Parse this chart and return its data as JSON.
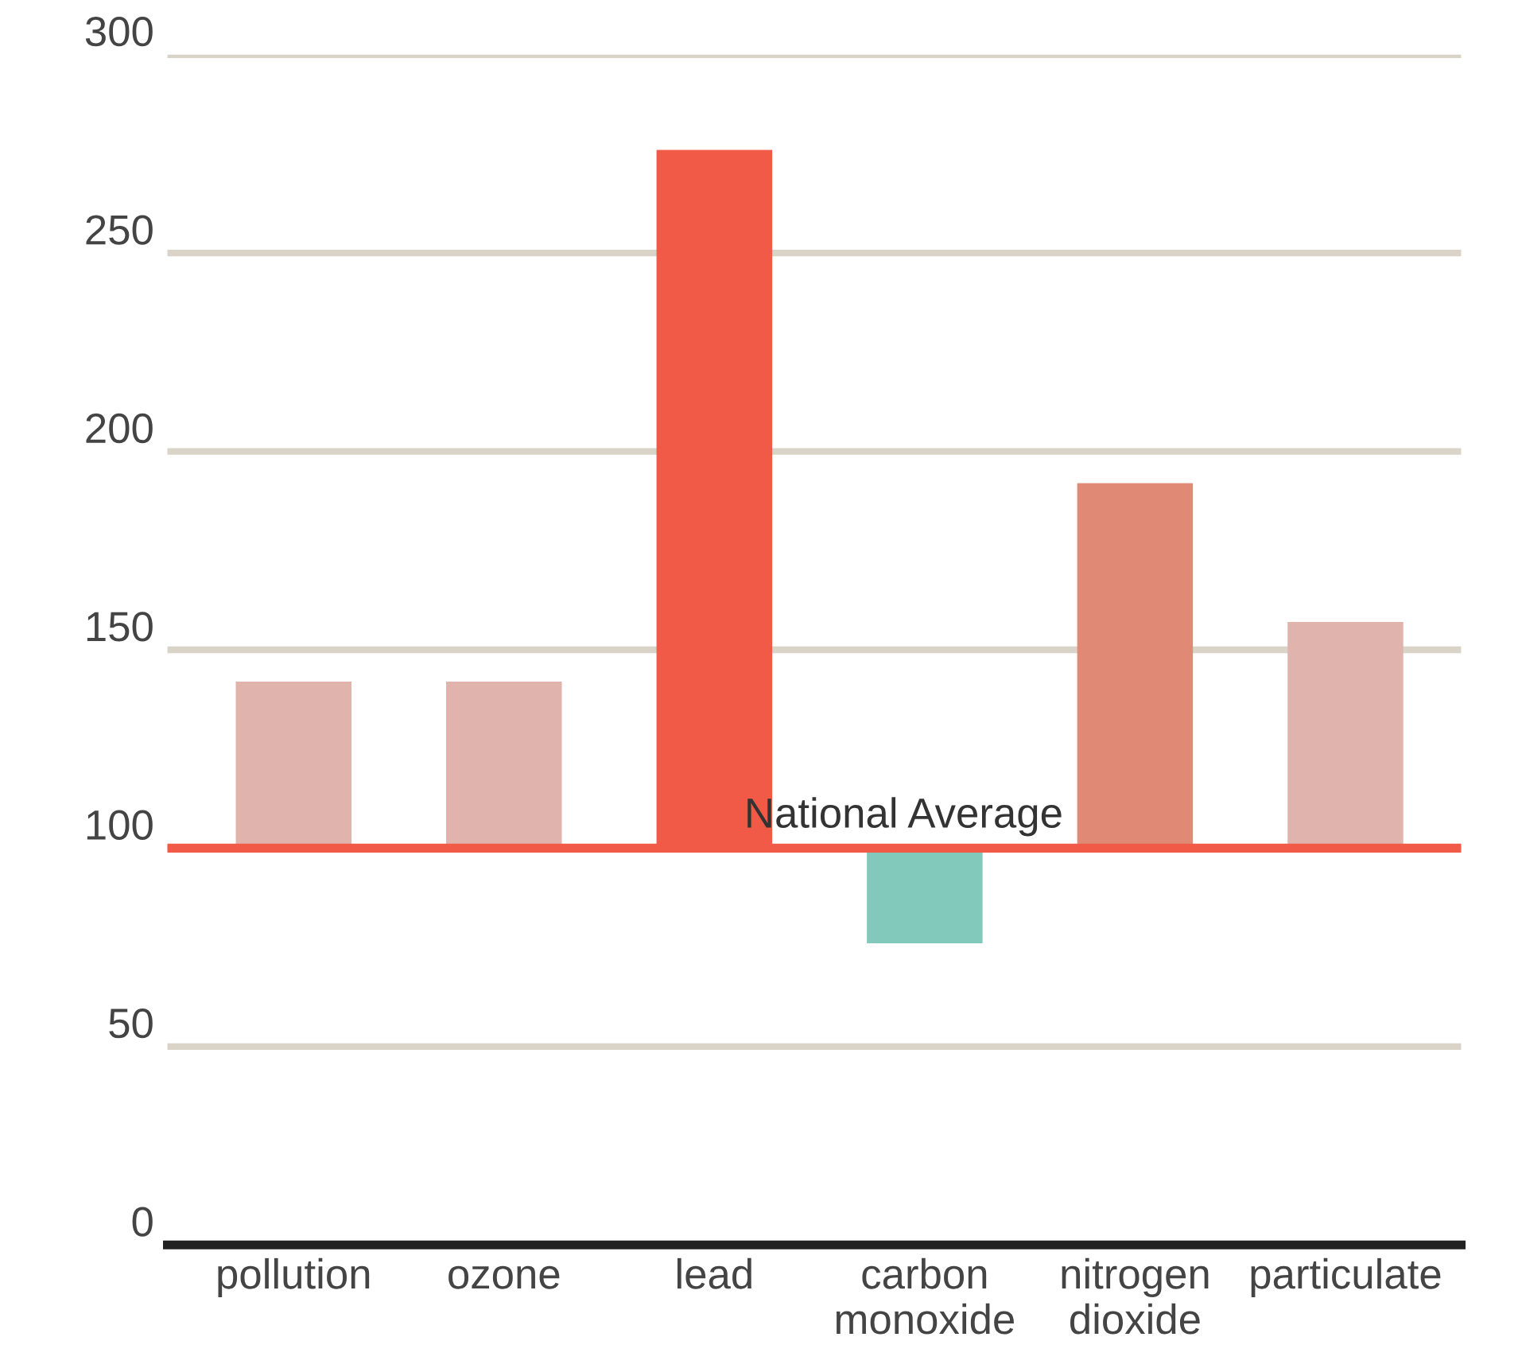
{
  "chart_data": {
    "type": "bar",
    "categories": [
      "pollution",
      "ozone",
      "lead",
      "carbon\nmonoxide",
      "nitrogen\ndioxide",
      "particulate"
    ],
    "values": [
      42,
      42,
      176,
      -24,
      92,
      57
    ],
    "base": [
      100,
      100,
      100,
      100,
      100,
      100
    ],
    "colors": [
      "#e0b3ac",
      "#e0b3ac",
      "#f05a46",
      "#82c9bc",
      "#e08a76",
      "#e0b3ac"
    ],
    "ylim": [
      0,
      300
    ],
    "yticks": [
      0,
      50,
      100,
      150,
      200,
      250,
      300
    ],
    "grid": "y",
    "legend": false,
    "ref_lines": [
      {
        "axis": "y",
        "value": 100,
        "label": "National Average",
        "color": "#f05a46"
      }
    ]
  }
}
